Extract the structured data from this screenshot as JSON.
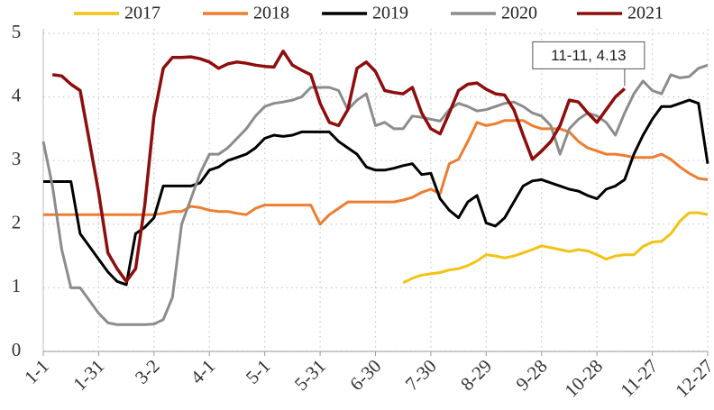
{
  "chart_data": {
    "type": "line",
    "categories": [
      "1-1",
      null,
      null,
      null,
      null,
      null,
      "1-31",
      null,
      null,
      null,
      null,
      null,
      "3-2",
      null,
      null,
      null,
      null,
      null,
      "4-1",
      null,
      null,
      null,
      null,
      null,
      "5-1",
      null,
      null,
      null,
      null,
      null,
      "5-31",
      null,
      null,
      null,
      null,
      null,
      "6-30",
      null,
      null,
      null,
      null,
      null,
      "7-30",
      null,
      null,
      null,
      null,
      null,
      "8-29",
      null,
      null,
      null,
      null,
      null,
      "9-28",
      null,
      null,
      null,
      null,
      null,
      "10-28",
      null,
      null,
      null,
      null,
      null,
      "11-27",
      null,
      null,
      null,
      null,
      null,
      "12-27"
    ],
    "series": [
      {
        "name": "2017",
        "color": "#f2c314",
        "values": [
          null,
          null,
          null,
          null,
          null,
          null,
          null,
          null,
          null,
          null,
          null,
          null,
          null,
          null,
          null,
          null,
          null,
          null,
          null,
          null,
          null,
          null,
          null,
          null,
          null,
          null,
          null,
          null,
          null,
          null,
          null,
          null,
          null,
          null,
          null,
          null,
          null,
          null,
          null,
          1.08,
          1.15,
          1.2,
          1.22,
          1.24,
          1.28,
          1.3,
          1.35,
          1.42,
          1.52,
          1.5,
          1.47,
          1.5,
          1.55,
          1.6,
          1.66,
          1.63,
          1.6,
          1.57,
          1.6,
          1.58,
          1.52,
          1.45,
          1.5,
          1.52,
          1.52,
          1.65,
          1.72,
          1.73,
          1.85,
          2.05,
          2.18,
          2.18,
          2.15
        ]
      },
      {
        "name": "2018",
        "color": "#ed7d31",
        "values": [
          2.15,
          2.15,
          2.15,
          2.15,
          2.15,
          2.15,
          2.15,
          2.15,
          2.15,
          2.15,
          2.15,
          2.15,
          2.15,
          2.17,
          2.2,
          2.2,
          2.28,
          2.26,
          2.22,
          2.2,
          2.2,
          2.17,
          2.15,
          2.25,
          2.3,
          2.3,
          2.3,
          2.3,
          2.3,
          2.3,
          2.0,
          2.15,
          2.25,
          2.35,
          2.35,
          2.35,
          2.35,
          2.35,
          2.35,
          2.38,
          2.42,
          2.5,
          2.55,
          2.48,
          2.95,
          3.02,
          3.3,
          3.6,
          3.55,
          3.58,
          3.63,
          3.63,
          3.63,
          3.55,
          3.5,
          3.5,
          3.5,
          3.45,
          3.3,
          3.2,
          3.15,
          3.1,
          3.1,
          3.08,
          3.05,
          3.05,
          3.05,
          3.1,
          3.02,
          2.9,
          2.8,
          2.72,
          2.7
        ]
      },
      {
        "name": "2019",
        "color": "#000000",
        "values": [
          2.67,
          2.67,
          2.67,
          2.67,
          1.85,
          1.65,
          1.45,
          1.25,
          1.1,
          1.05,
          1.85,
          1.95,
          2.1,
          2.6,
          2.6,
          2.6,
          2.6,
          2.65,
          2.85,
          2.9,
          3.0,
          3.05,
          3.1,
          3.2,
          3.35,
          3.4,
          3.38,
          3.4,
          3.45,
          3.45,
          3.45,
          3.45,
          3.3,
          3.2,
          3.1,
          2.9,
          2.85,
          2.85,
          2.88,
          2.92,
          2.95,
          2.78,
          2.8,
          2.4,
          2.22,
          2.1,
          2.35,
          2.45,
          2.02,
          1.97,
          2.1,
          2.35,
          2.6,
          2.68,
          2.7,
          2.65,
          2.6,
          2.55,
          2.52,
          2.45,
          2.4,
          2.55,
          2.6,
          2.7,
          3.1,
          3.4,
          3.65,
          3.85,
          3.85,
          3.9,
          3.95,
          3.9,
          2.95
        ]
      },
      {
        "name": "2020",
        "color": "#8c8c8c",
        "values": [
          3.3,
          2.6,
          1.6,
          1.0,
          1.0,
          0.8,
          0.6,
          0.45,
          0.42,
          0.42,
          0.42,
          0.42,
          0.43,
          0.5,
          0.85,
          2.0,
          2.4,
          2.8,
          3.1,
          3.1,
          3.2,
          3.35,
          3.5,
          3.7,
          3.85,
          3.9,
          3.92,
          3.95,
          4.0,
          4.15,
          4.15,
          4.15,
          4.1,
          3.8,
          3.95,
          4.05,
          3.55,
          3.6,
          3.5,
          3.5,
          3.7,
          3.68,
          3.65,
          3.62,
          3.8,
          3.9,
          3.85,
          3.78,
          3.8,
          3.85,
          3.9,
          3.92,
          3.85,
          3.75,
          3.7,
          3.55,
          3.1,
          3.5,
          3.65,
          3.75,
          3.7,
          3.6,
          3.4,
          3.75,
          4.05,
          4.25,
          4.1,
          4.05,
          4.35,
          4.3,
          4.32,
          4.45,
          4.5
        ]
      },
      {
        "name": "2021",
        "color": "#8e0d0d",
        "values": [
          null,
          4.35,
          4.33,
          4.2,
          4.1,
          3.3,
          2.5,
          1.55,
          1.3,
          1.1,
          1.3,
          2.3,
          3.7,
          4.45,
          4.62,
          4.62,
          4.63,
          4.6,
          4.55,
          4.45,
          4.52,
          4.55,
          4.53,
          4.5,
          4.48,
          4.47,
          4.72,
          4.5,
          4.42,
          4.35,
          3.9,
          3.6,
          3.55,
          3.8,
          4.45,
          4.55,
          4.4,
          4.1,
          4.07,
          4.05,
          4.15,
          3.75,
          3.5,
          3.42,
          3.75,
          4.1,
          4.2,
          4.22,
          4.12,
          4.05,
          4.03,
          3.8,
          3.4,
          3.02,
          3.15,
          3.3,
          3.55,
          3.95,
          3.92,
          3.75,
          3.6,
          3.8,
          4.0,
          4.13,
          null,
          null,
          null,
          null,
          null,
          null,
          null,
          null,
          null
        ]
      }
    ],
    "annotation": "11-11, 4.13",
    "ylim": [
      0,
      5
    ],
    "yticks": [
      0,
      1,
      2,
      3,
      4,
      5
    ],
    "grid": true
  }
}
